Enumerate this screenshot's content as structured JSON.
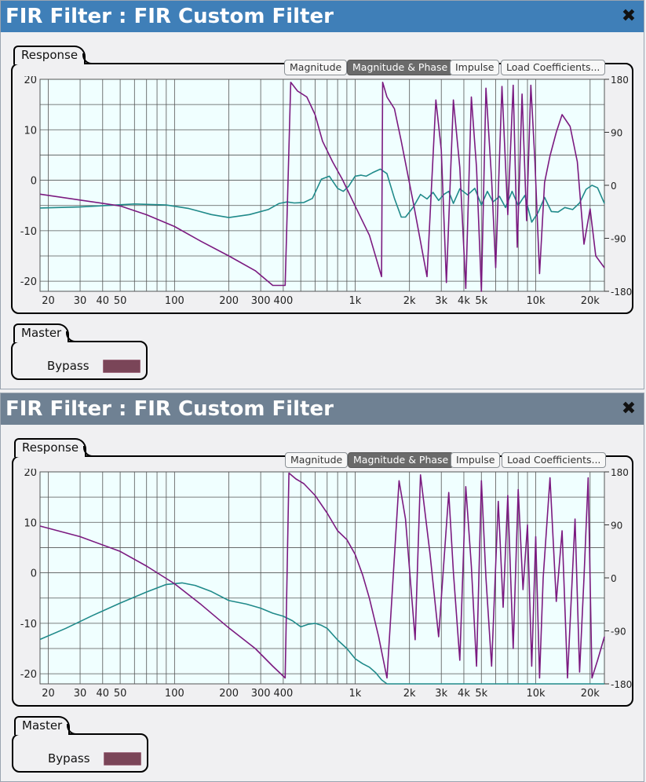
{
  "panels": [
    {
      "title": "FIR Filter : FIR Custom Filter",
      "header_color": "#3f7fb8",
      "response_label": "Response",
      "buttons": [
        "Magnitude",
        "Magnitude & Phase",
        "Impulse",
        "Load Coefficients..."
      ],
      "active_button": "Magnitude & Phase",
      "master_label": "Master",
      "bypass_label": "Bypass"
    },
    {
      "title": "FIR Filter : FIR Custom Filter",
      "header_color": "#6f8193",
      "response_label": "Response",
      "buttons": [
        "Magnitude",
        "Magnitude & Phase",
        "Impulse",
        "Load Coefficients..."
      ],
      "active_button": "Magnitude & Phase",
      "master_label": "Master",
      "bypass_label": "Bypass"
    }
  ],
  "chart_data": [
    {
      "type": "line",
      "x_scale": "log",
      "xlim": [
        18,
        24000
      ],
      "ylim_left": [
        -22,
        20
      ],
      "ylim_right": [
        -180,
        180
      ],
      "x_ticks": [
        20,
        30,
        40,
        50,
        100,
        200,
        300,
        400,
        1000,
        2000,
        3000,
        4000,
        5000,
        10000,
        20000
      ],
      "x_tick_labels": [
        "20",
        "30",
        "40",
        "50",
        "100",
        "200",
        "300",
        "400",
        "1k",
        "2k",
        "3k",
        "4k",
        "5k",
        "10k",
        "20k"
      ],
      "y_left_ticks": [
        20,
        10,
        0,
        -10,
        -20
      ],
      "y_left_tick_labels": [
        "20",
        "10",
        "0",
        "-10",
        "-20"
      ],
      "y_right_ticks": [
        180,
        90,
        0,
        -90,
        -180
      ],
      "y_right_tick_labels": [
        "180",
        "90",
        "0",
        "-90",
        "-180"
      ],
      "grid": true,
      "colors": {
        "magnitude": "#208a8a",
        "phase": "#7b1a80",
        "background": "#f0ffff",
        "grid": "#555555"
      },
      "series": [
        {
          "role": "magnitude",
          "axis": "left",
          "x": [
            18,
            30,
            60,
            90,
            120,
            160,
            200,
            260,
            330,
            380,
            420,
            460,
            520,
            580,
            650,
            720,
            800,
            860,
            920,
            1000,
            1080,
            1150,
            1250,
            1380,
            1500,
            1650,
            1800,
            1900,
            2100,
            2300,
            2500,
            2700,
            2900,
            3100,
            3300,
            3500,
            3800,
            4200,
            4600,
            5000,
            5400,
            5800,
            6300,
            6800,
            7400,
            8000,
            8700,
            9500,
            10300,
            11200,
            12200,
            13300,
            14500,
            16000,
            17500,
            19000,
            20500,
            22000,
            24000
          ],
          "y": [
            -5.5,
            -5.3,
            -4.7,
            -4.9,
            -5.6,
            -6.8,
            -7.4,
            -6.8,
            -5.8,
            -4.6,
            -4.3,
            -4.5,
            -4.4,
            -3.6,
            0.2,
            0.8,
            -1.6,
            -2.2,
            -1.2,
            0.8,
            1.0,
            0.8,
            1.5,
            2.2,
            1.3,
            -3.6,
            -7.3,
            -7.3,
            -5.3,
            -2.8,
            -3.7,
            -2.4,
            -4.0,
            -2.8,
            -2.2,
            -4.6,
            -1.7,
            -2.9,
            -1.6,
            -4.9,
            -2.2,
            -4.3,
            -3.2,
            -5.4,
            -2.2,
            -5.0,
            -3.0,
            -8.3,
            -6.4,
            -3.4,
            -6.2,
            -6.3,
            -5.4,
            -5.8,
            -4.5,
            -1.8,
            -1.0,
            -1.5,
            -4.6
          ]
        },
        {
          "role": "phase",
          "axis": "right",
          "x": [
            18,
            30,
            50,
            70,
            100,
            140,
            200,
            280,
            350,
            410,
            440,
            480,
            540,
            600,
            660,
            750,
            850,
            1000,
            1200,
            1400,
            1420,
            1500,
            1650,
            1800,
            2100,
            2500,
            2800,
            3000,
            3200,
            3500,
            3800,
            4100,
            4400,
            4700,
            5000,
            5300,
            5700,
            6000,
            6500,
            7000,
            7500,
            7900,
            8400,
            8900,
            9400,
            9900,
            10500,
            11200,
            12000,
            13000,
            14000,
            15500,
            17000,
            18500,
            20000,
            21500,
            24000
          ],
          "y": [
            -15,
            -25,
            -35,
            -50,
            -70,
            -95,
            -120,
            -145,
            -170,
            -170,
            175,
            160,
            150,
            120,
            75,
            40,
            10,
            -35,
            -85,
            -155,
            175,
            150,
            130,
            75,
            -30,
            -155,
            145,
            60,
            -165,
            145,
            30,
            -175,
            150,
            30,
            -180,
            165,
            10,
            -140,
            168,
            -50,
            170,
            -105,
            155,
            -60,
            170,
            40,
            -150,
            5,
            50,
            90,
            120,
            100,
            40,
            -100,
            -40,
            -120,
            -140
          ]
        }
      ]
    },
    {
      "type": "line",
      "x_scale": "log",
      "xlim": [
        18,
        24000
      ],
      "ylim_left": [
        -22,
        20
      ],
      "ylim_right": [
        -180,
        180
      ],
      "x_ticks": [
        20,
        30,
        40,
        50,
        100,
        200,
        300,
        400,
        1000,
        2000,
        3000,
        4000,
        5000,
        10000,
        20000
      ],
      "x_tick_labels": [
        "20",
        "30",
        "40",
        "50",
        "100",
        "200",
        "300",
        "400",
        "1k",
        "2k",
        "3k",
        "4k",
        "5k",
        "10k",
        "20k"
      ],
      "y_left_ticks": [
        20,
        10,
        0,
        -10,
        -20
      ],
      "y_left_tick_labels": [
        "20",
        "10",
        "0",
        "-10",
        "-20"
      ],
      "y_right_ticks": [
        180,
        90,
        0,
        -90,
        -180
      ],
      "y_right_tick_labels": [
        "180",
        "90",
        "0",
        "-90",
        "-180"
      ],
      "grid": true,
      "colors": {
        "magnitude": "#208a8a",
        "phase": "#7b1a80",
        "background": "#f0ffff",
        "grid": "#555555"
      },
      "series": [
        {
          "role": "magnitude",
          "axis": "left",
          "x": [
            18,
            25,
            35,
            50,
            70,
            90,
            110,
            130,
            160,
            200,
            250,
            300,
            350,
            400,
            450,
            500,
            550,
            600,
            650,
            700,
            800,
            900,
            1000,
            1100,
            1200,
            1300,
            1400,
            1500,
            2000,
            5000,
            10000,
            24000
          ],
          "y": [
            -13.2,
            -11.0,
            -8.5,
            -6.0,
            -3.8,
            -2.3,
            -2.0,
            -2.5,
            -3.7,
            -5.5,
            -6.2,
            -7.0,
            -8.0,
            -8.6,
            -9.5,
            -10.7,
            -10.2,
            -10.0,
            -10.4,
            -11.0,
            -13.3,
            -15.0,
            -17.0,
            -18.0,
            -18.7,
            -19.8,
            -21.2,
            -22,
            -22,
            -22,
            -22,
            -22
          ]
        },
        {
          "role": "phase",
          "axis": "right",
          "x": [
            18,
            30,
            50,
            70,
            100,
            140,
            200,
            280,
            350,
            410,
            430,
            470,
            520,
            600,
            700,
            800,
            900,
            1000,
            1100,
            1200,
            1350,
            1500,
            1750,
            1900,
            2150,
            2300,
            2600,
            2900,
            3300,
            3500,
            3800,
            4100,
            4400,
            4700,
            5000,
            5300,
            5700,
            6200,
            6600,
            7000,
            7500,
            8000,
            8500,
            9000,
            9500,
            10000,
            10500,
            11000,
            12000,
            13000,
            14000,
            15000,
            16500,
            17500,
            18500,
            19500,
            20500,
            22000,
            24000
          ],
          "y": [
            88,
            70,
            45,
            20,
            -10,
            -45,
            -85,
            -120,
            -150,
            -170,
            178,
            168,
            160,
            140,
            110,
            80,
            65,
            40,
            5,
            -35,
            -100,
            -170,
            165,
            100,
            -105,
            175,
            40,
            -100,
            145,
            10,
            -140,
            155,
            20,
            -150,
            165,
            0,
            -150,
            130,
            -50,
            140,
            -120,
            150,
            -20,
            90,
            -150,
            70,
            -170,
            0,
            170,
            -40,
            80,
            -170,
            100,
            -160,
            0,
            170,
            -170,
            -140,
            -100
          ]
        }
      ]
    }
  ]
}
